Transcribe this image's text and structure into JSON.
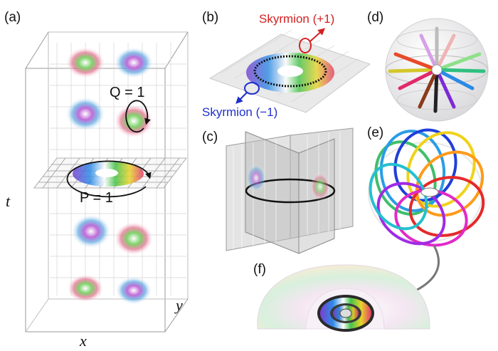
{
  "panels": {
    "a": {
      "label": "(a)",
      "q_label": "Q = 1",
      "p_label": "P = 1",
      "axis_t": "t",
      "axis_x": "x",
      "axis_y": "y"
    },
    "b": {
      "label": "(b)",
      "skyrmion_plus": "Skyrmion (+1)",
      "skyrmion_minus": "Skyrmion (−1)",
      "colors": {
        "plus": "#d42020",
        "minus": "#1f2fcc"
      }
    },
    "c": {
      "label": "(c)"
    },
    "d": {
      "label": "(d)"
    },
    "e": {
      "label": "(e)"
    },
    "f": {
      "label": "(f)"
    }
  }
}
